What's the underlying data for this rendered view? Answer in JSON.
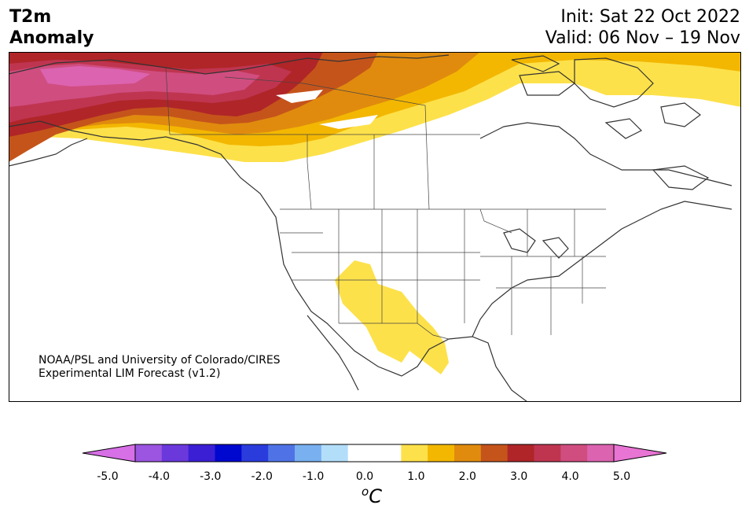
{
  "title": {
    "line1": "T2m",
    "line2": "Anomaly"
  },
  "info": {
    "init": "Init: Sat 22 Oct 2022",
    "valid": "Valid: 06 Nov – 19 Nov"
  },
  "credit": {
    "line1": "NOAA/PSL and University of Colorado/CIRES",
    "line2": "Experimental LIM Forecast (v1.2)"
  },
  "colorbar": {
    "ticks": [
      "-5.0",
      "-4.0",
      "-3.0",
      "-2.0",
      "-1.0",
      "0.0",
      "1.0",
      "2.0",
      "3.0",
      "4.0",
      "5.0"
    ],
    "colors": [
      "#d76fe6",
      "#9b55e0",
      "#6a38db",
      "#3b1fd4",
      "#0008cf",
      "#2a3cdc",
      "#4f73e6",
      "#78b0f0",
      "#b3defa",
      "#ffffff",
      "#ffffff",
      "#fde14a",
      "#f3b701",
      "#e08b0e",
      "#c5541b",
      "#b02528",
      "#bf3550",
      "#d04d7f",
      "#db63b0",
      "#e874d4"
    ],
    "unit_base": "o",
    "unit_letter": "C"
  },
  "map_layers": {
    "land_outline": "#333333",
    "anomaly_colors": {
      "plus_0_5": "#fde14a",
      "plus_1_0": "#f3b701",
      "plus_1_5": "#e08b0e",
      "plus_2_0": "#c5541b",
      "plus_2_5": "#b02528",
      "plus_3_0": "#bf3550",
      "plus_3_5": "#d04d7f",
      "plus_4_0": "#db63b0"
    }
  }
}
